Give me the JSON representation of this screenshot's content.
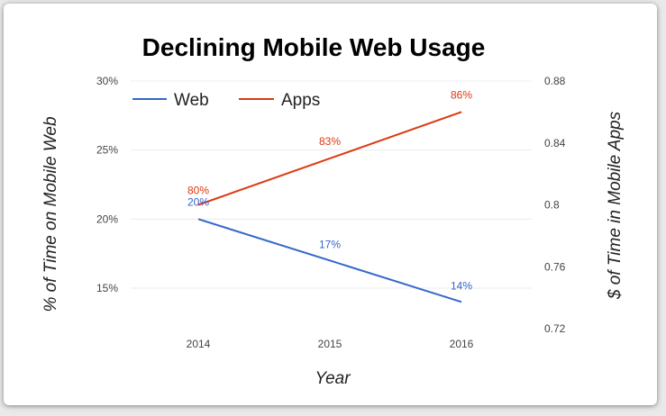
{
  "chart_data": {
    "type": "line",
    "title": "Declining Mobile Web Usage",
    "xlabel": "Year",
    "ylabel_left": "% of Time on Mobile Web",
    "ylabel_right": "$ of Time in Mobile Apps",
    "x": [
      "2014",
      "2015",
      "2016"
    ],
    "left_axis": {
      "range": [
        15,
        30
      ],
      "ticks": [
        "15%",
        "20%",
        "25%",
        "30%"
      ],
      "tick_values": [
        15,
        20,
        25,
        30
      ]
    },
    "right_axis": {
      "range": [
        0.72,
        0.88
      ],
      "ticks": [
        "0.72",
        "0.76",
        "0.8",
        "0.84",
        "0.88"
      ],
      "tick_values": [
        0.72,
        0.76,
        0.8,
        0.84,
        0.88
      ]
    },
    "legend": "top-left",
    "grid": true,
    "series": [
      {
        "name": "Web",
        "axis": "left",
        "color": "#3366cc",
        "values": [
          20,
          17,
          14
        ],
        "labels": [
          "20%",
          "17%",
          "14%"
        ]
      },
      {
        "name": "Apps",
        "axis": "right",
        "color": "#dc3912",
        "values": [
          0.8,
          0.83,
          0.86
        ],
        "labels": [
          "80%",
          "83%",
          "86%"
        ]
      }
    ]
  }
}
